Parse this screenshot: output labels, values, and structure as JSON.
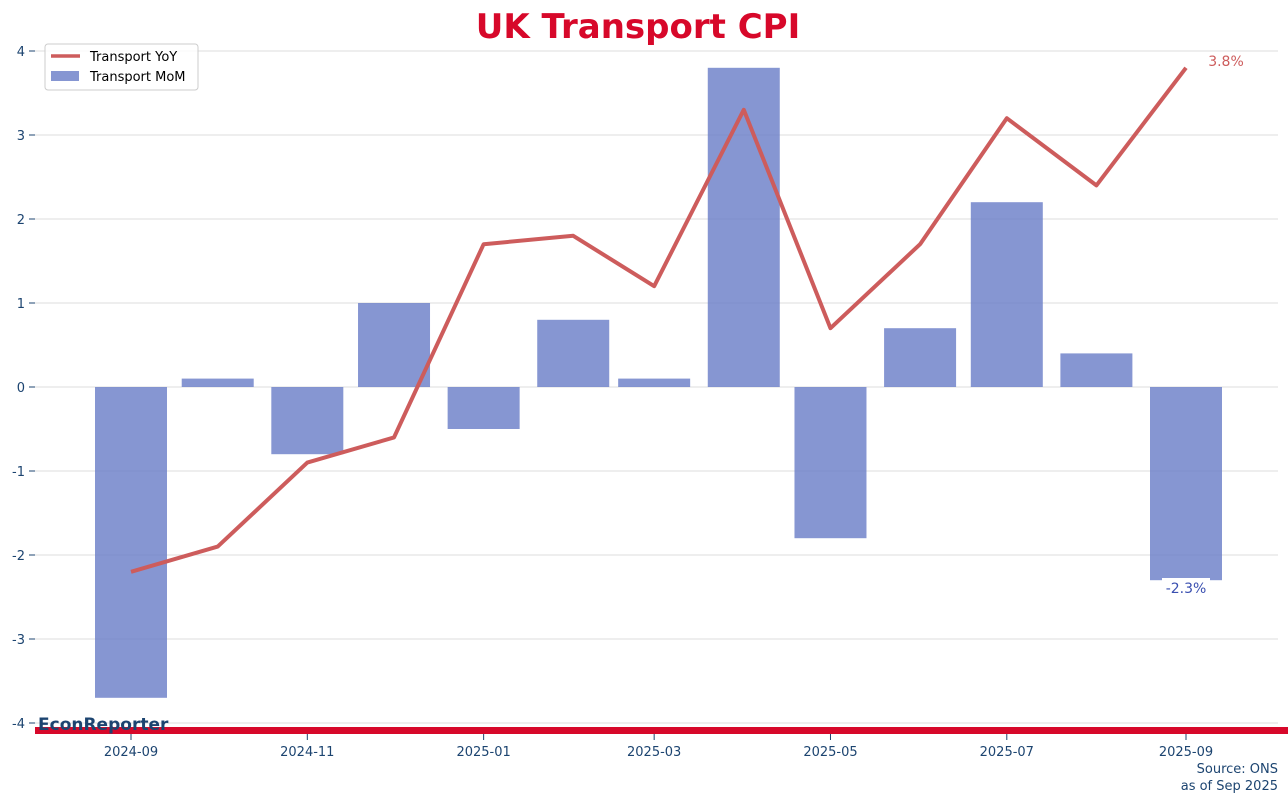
{
  "brand": "EconReporter",
  "source": [
    "Source: ONS",
    "as of Sep 2025"
  ],
  "colors": {
    "title": "#d7082a",
    "bar": "#6b7fc8",
    "line": "#cd5c5c",
    "axis_text": "#1c4470",
    "brand_bar": "#d7082a",
    "grid": "#dddddd"
  },
  "chart_data": {
    "type": "bar+line",
    "title": "UK Transport CPI",
    "xlabel": "",
    "ylabel": "",
    "ylim": [
      -4.1,
      4.1
    ],
    "yticks": [
      -4,
      -3,
      -2,
      -1,
      0,
      1,
      2,
      3,
      4
    ],
    "xticks": [
      "2024-09",
      "2024-11",
      "2025-01",
      "2025-03",
      "2025-05",
      "2025-07",
      "2025-09"
    ],
    "grid": true,
    "legend_position": "top-left",
    "x": [
      "2024-09",
      "2024-10",
      "2024-11",
      "2024-12",
      "2025-01",
      "2025-02",
      "2025-03",
      "2025-04",
      "2025-05",
      "2025-06",
      "2025-07",
      "2025-08",
      "2025-09"
    ],
    "series": [
      {
        "name": "Transport YoY",
        "type": "line",
        "values": [
          -2.2,
          -1.9,
          -0.9,
          -0.6,
          1.7,
          1.8,
          1.2,
          3.3,
          0.7,
          1.7,
          3.2,
          2.4,
          3.8
        ]
      },
      {
        "name": "Transport MoM",
        "type": "bar",
        "values": [
          -3.7,
          0.1,
          -0.8,
          1.0,
          -0.5,
          0.8,
          0.1,
          3.8,
          -1.8,
          0.7,
          2.2,
          0.4,
          -2.3
        ]
      }
    ],
    "annotations": [
      {
        "series": "Transport YoY",
        "x": "2025-09",
        "text": "3.8%"
      },
      {
        "series": "Transport MoM",
        "x": "2025-09",
        "text": "-2.3%"
      }
    ]
  }
}
